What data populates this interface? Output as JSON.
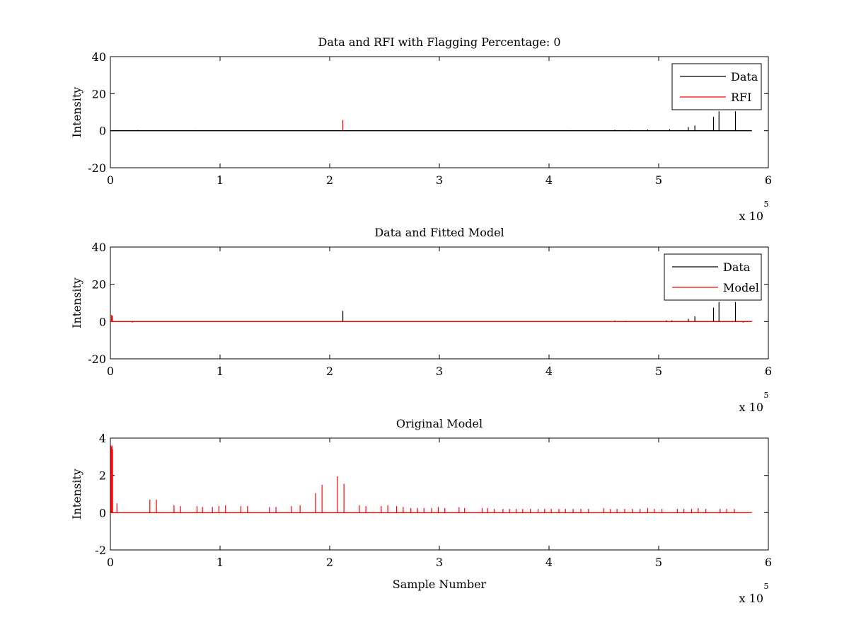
{
  "chart_data": [
    {
      "type": "line",
      "title": "Data and RFI with Flagging Percentage: 0",
      "xlabel": "",
      "ylabel": "Intensity",
      "xlim": [
        0,
        6
      ],
      "ylim": [
        -20,
        40
      ],
      "x_ticks": [
        "0",
        "1",
        "2",
        "3",
        "4",
        "5",
        "6"
      ],
      "y_ticks": [
        "-20",
        "0",
        "20",
        "40"
      ],
      "x_multiplier": "x 10",
      "x_multiplier_exp": "5",
      "legend": {
        "position": "top-right",
        "entries": [
          {
            "name": "Data",
            "color": "#000000"
          },
          {
            "name": "RFI",
            "color": "#ff0000"
          }
        ]
      },
      "grid": false,
      "series": [
        {
          "name": "Data",
          "color": "#000000",
          "baseline": 0,
          "x": [
            0.06,
            0.25,
            0.5,
            0.78,
            1.2,
            1.85,
            2.6,
            3.4,
            4.2,
            4.6,
            4.74,
            4.9,
            5.1,
            5.27,
            5.33,
            5.5,
            5.55,
            5.7
          ],
          "values": [
            0.3,
            0.4,
            0.2,
            0.3,
            0.2,
            0.2,
            0.2,
            0.2,
            0.3,
            0.5,
            0.4,
            0.6,
            0.8,
            2.0,
            2.8,
            7.5,
            10.5,
            10.5
          ]
        },
        {
          "name": "RFI",
          "color": "#ff0000",
          "baseline": 0,
          "x": [
            2.12
          ],
          "values": [
            5.8
          ]
        }
      ]
    },
    {
      "type": "line",
      "title": "Data and Fitted Model",
      "xlabel": "",
      "ylabel": "Intensity",
      "xlim": [
        0,
        6
      ],
      "ylim": [
        -20,
        40
      ],
      "x_ticks": [
        "0",
        "1",
        "2",
        "3",
        "4",
        "5",
        "6"
      ],
      "y_ticks": [
        "-20",
        "0",
        "20",
        "40"
      ],
      "x_multiplier": "x 10",
      "x_multiplier_exp": "5",
      "legend": {
        "position": "top-right",
        "entries": [
          {
            "name": "Data",
            "color": "#000000"
          },
          {
            "name": "Model",
            "color": "#ff0000"
          }
        ]
      },
      "grid": false,
      "series": [
        {
          "name": "Data",
          "color": "#000000",
          "baseline": 0,
          "x": [
            0.02,
            0.2,
            2.12,
            4.45,
            4.6,
            4.7,
            5.07,
            5.12,
            5.27,
            5.33,
            5.5,
            5.55,
            5.7,
            5.77
          ],
          "values": [
            3.0,
            -0.5,
            5.7,
            0.3,
            0.5,
            0.4,
            0.6,
            0.6,
            1.5,
            2.8,
            7.5,
            10.5,
            10.5,
            -0.5
          ]
        },
        {
          "name": "Model",
          "color": "#ff0000",
          "baseline": 0,
          "x": [
            0.01,
            0.02
          ],
          "values": [
            3.5,
            3.2
          ]
        }
      ]
    },
    {
      "type": "line",
      "title": "Original Model",
      "xlabel": "Sample Number",
      "ylabel": "Intensity",
      "xlim": [
        0,
        6
      ],
      "ylim": [
        -2,
        4
      ],
      "x_ticks": [
        "0",
        "1",
        "2",
        "3",
        "4",
        "5",
        "6"
      ],
      "y_ticks": [
        "-2",
        "0",
        "2",
        "4"
      ],
      "x_multiplier": "x 10",
      "x_multiplier_exp": "5",
      "grid": false,
      "series": [
        {
          "name": "Model",
          "color": "#ff0000",
          "baseline": 0,
          "x": [
            0.005,
            0.01,
            0.015,
            0.02,
            0.06,
            0.36,
            0.42,
            0.58,
            0.64,
            0.79,
            0.84,
            0.93,
            0.99,
            1.05,
            1.19,
            1.25,
            1.45,
            1.51,
            1.65,
            1.73,
            1.87,
            1.93,
            2.07,
            2.13,
            2.27,
            2.33,
            2.47,
            2.53,
            2.61,
            2.67,
            2.74,
            2.8,
            2.86,
            2.93,
            2.99,
            3.05,
            3.18,
            3.23,
            3.39,
            3.44,
            3.5,
            3.58,
            3.64,
            3.7,
            3.76,
            3.83,
            3.9,
            3.96,
            4.02,
            4.09,
            4.15,
            4.22,
            4.29,
            4.36,
            4.5,
            4.56,
            4.62,
            4.69,
            4.76,
            4.83,
            4.9,
            4.96,
            5.03,
            5.17,
            5.23,
            5.3,
            5.36,
            5.43,
            5.56,
            5.62,
            5.69
          ],
          "values": [
            3.6,
            3.5,
            3.6,
            3.4,
            0.5,
            0.7,
            0.7,
            0.4,
            0.35,
            0.35,
            0.3,
            0.3,
            0.35,
            0.4,
            0.35,
            0.35,
            0.3,
            0.3,
            0.35,
            0.4,
            1.05,
            1.5,
            1.95,
            1.55,
            0.4,
            0.35,
            0.35,
            0.4,
            0.35,
            0.3,
            0.25,
            0.25,
            0.25,
            0.25,
            0.3,
            0.25,
            0.3,
            0.25,
            0.25,
            0.25,
            0.2,
            0.2,
            0.2,
            0.2,
            0.2,
            0.2,
            0.2,
            0.2,
            0.2,
            0.2,
            0.2,
            0.2,
            0.2,
            0.2,
            0.25,
            0.2,
            0.2,
            0.2,
            0.2,
            0.2,
            0.25,
            0.2,
            0.2,
            0.2,
            0.2,
            0.2,
            0.25,
            0.2,
            0.2,
            0.2,
            0.2
          ]
        }
      ]
    }
  ]
}
